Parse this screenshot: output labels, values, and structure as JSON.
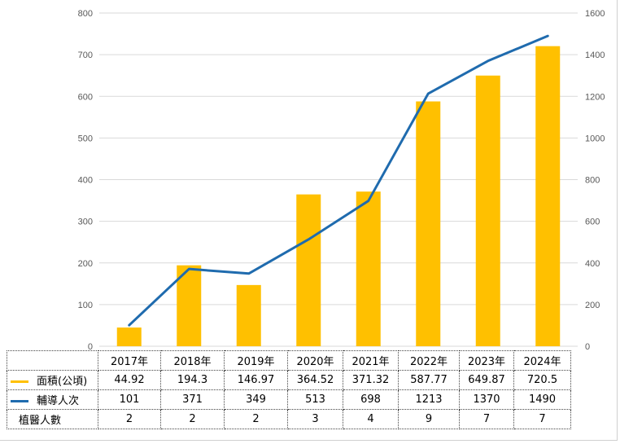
{
  "chart_data": {
    "type": "bar+line",
    "categories": [
      "2017年",
      "2018年",
      "2019年",
      "2020年",
      "2021年",
      "2022年",
      "2023年",
      "2024年"
    ],
    "series": [
      {
        "name": "面積(公頃)",
        "kind": "bar",
        "axis": "left",
        "color": "#FFC000",
        "values": [
          44.92,
          194.3,
          146.97,
          364.52,
          371.32,
          587.77,
          649.87,
          720.5
        ]
      },
      {
        "name": "輔導人次",
        "kind": "line",
        "axis": "right",
        "color": "#1F6BAE",
        "values": [
          101,
          371,
          349,
          513,
          698,
          1213,
          1370,
          1490
        ]
      }
    ],
    "extra_rows": [
      {
        "name": "植醫人數",
        "values": [
          2,
          2,
          2,
          3,
          4,
          9,
          7,
          7
        ]
      }
    ],
    "ylim_left": [
      0,
      800
    ],
    "ylim_right": [
      0,
      1600
    ],
    "yticks_left": [
      0,
      100,
      200,
      300,
      400,
      500,
      600,
      700,
      800
    ],
    "yticks_right": [
      0,
      200,
      400,
      600,
      800,
      1000,
      1200,
      1400,
      1600
    ],
    "grid": true,
    "legend": "data table below chart"
  },
  "table": {
    "header": [
      "2017年",
      "2018年",
      "2019年",
      "2020年",
      "2021年",
      "2022年",
      "2023年",
      "2024年"
    ],
    "rows": [
      {
        "label": "面積(公頃)",
        "color": "#FFC000",
        "cells": [
          "44.92",
          "194.3",
          "146.97",
          "364.52",
          "371.32",
          "587.77",
          "649.87",
          "720.5"
        ]
      },
      {
        "label": "輔導人次",
        "color": "#1F6BAE",
        "cells": [
          "101",
          "371",
          "349",
          "513",
          "698",
          "1213",
          "1370",
          "1490"
        ]
      },
      {
        "label": "植醫人數",
        "color": "",
        "cells": [
          "2",
          "2",
          "2",
          "3",
          "4",
          "9",
          "7",
          "7"
        ]
      }
    ]
  }
}
